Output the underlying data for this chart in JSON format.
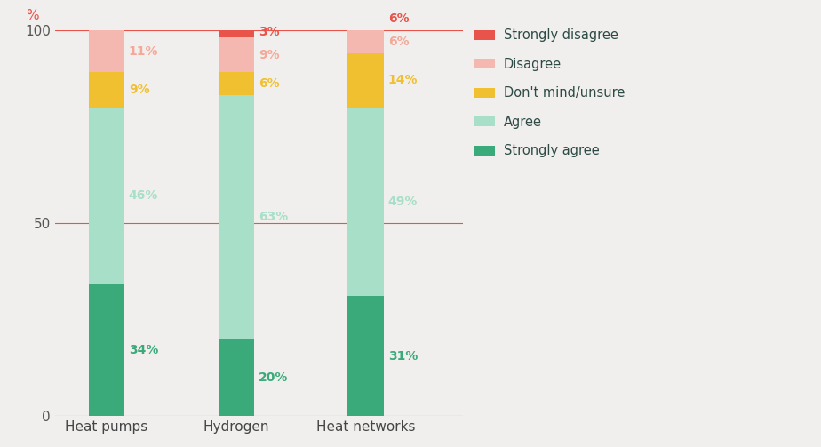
{
  "categories": [
    "Heat pumps",
    "Hydrogen",
    "Heat networks"
  ],
  "series": {
    "Strongly agree": [
      34,
      20,
      31
    ],
    "Agree": [
      46,
      63,
      49
    ],
    "Don't mind/unsure": [
      9,
      6,
      14
    ],
    "Disagree": [
      11,
      9,
      6
    ],
    "Strongly disagree": [
      0,
      3,
      6
    ]
  },
  "colors": {
    "Strongly agree": "#3aaa7a",
    "Agree": "#a8dfc8",
    "Don't mind/unsure": "#f0c030",
    "Disagree": "#f5b8b0",
    "Strongly disagree": "#e8534a"
  },
  "label_colors": {
    "Strongly agree": "#3aaa7a",
    "Agree": "#a8dfc8",
    "Don't mind/unsure": "#f0c030",
    "Disagree": "#f5a898",
    "Strongly disagree": "#e8534a"
  },
  "background_color": "#f0efed",
  "axis_color": "#e8534a",
  "legend_text_color": "#2d4a45",
  "ylabel": "%",
  "ylim": [
    0,
    100
  ],
  "yticks": [
    0,
    50,
    100
  ],
  "bar_width": 0.28,
  "bar_positions": [
    0,
    1,
    2
  ],
  "legend_labels": [
    "Strongly disagree",
    "Disagree",
    "Don't mind/unsure",
    "Agree",
    "Strongly agree"
  ]
}
